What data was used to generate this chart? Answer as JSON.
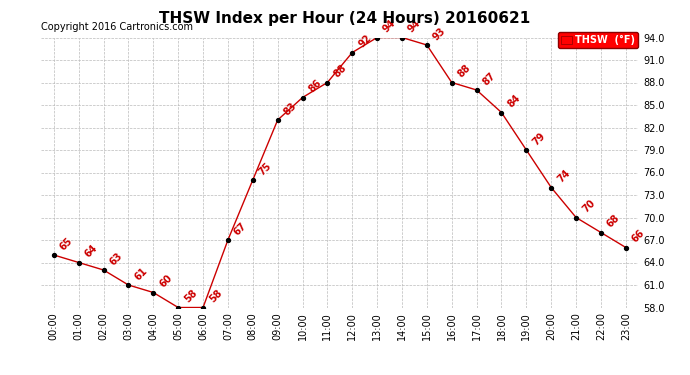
{
  "title": "THSW Index per Hour (24 Hours) 20160621",
  "copyright": "Copyright 2016 Cartronics.com",
  "legend_label": "THSW  (°F)",
  "hours": [
    0,
    1,
    2,
    3,
    4,
    5,
    6,
    7,
    8,
    9,
    10,
    11,
    12,
    13,
    14,
    15,
    16,
    17,
    18,
    19,
    20,
    21,
    22,
    23
  ],
  "values": [
    65,
    64,
    63,
    61,
    60,
    58,
    58,
    67,
    75,
    83,
    86,
    88,
    92,
    94,
    94,
    93,
    88,
    87,
    84,
    79,
    74,
    70,
    68,
    66
  ],
  "xlabels": [
    "00:00",
    "01:00",
    "02:00",
    "03:00",
    "04:00",
    "05:00",
    "06:00",
    "07:00",
    "08:00",
    "09:00",
    "10:00",
    "11:00",
    "12:00",
    "13:00",
    "14:00",
    "15:00",
    "16:00",
    "17:00",
    "18:00",
    "19:00",
    "20:00",
    "21:00",
    "22:00",
    "23:00"
  ],
  "ylim": [
    58.0,
    94.0
  ],
  "yticks": [
    58.0,
    61.0,
    64.0,
    67.0,
    70.0,
    73.0,
    76.0,
    79.0,
    82.0,
    85.0,
    88.0,
    91.0,
    94.0
  ],
  "line_color": "#cc0000",
  "marker_color": "#000000",
  "label_color": "#cc0000",
  "grid_color": "#bbbbbb",
  "background_color": "#ffffff",
  "title_fontsize": 11,
  "label_fontsize": 7,
  "tick_fontsize": 7,
  "copyright_fontsize": 7
}
